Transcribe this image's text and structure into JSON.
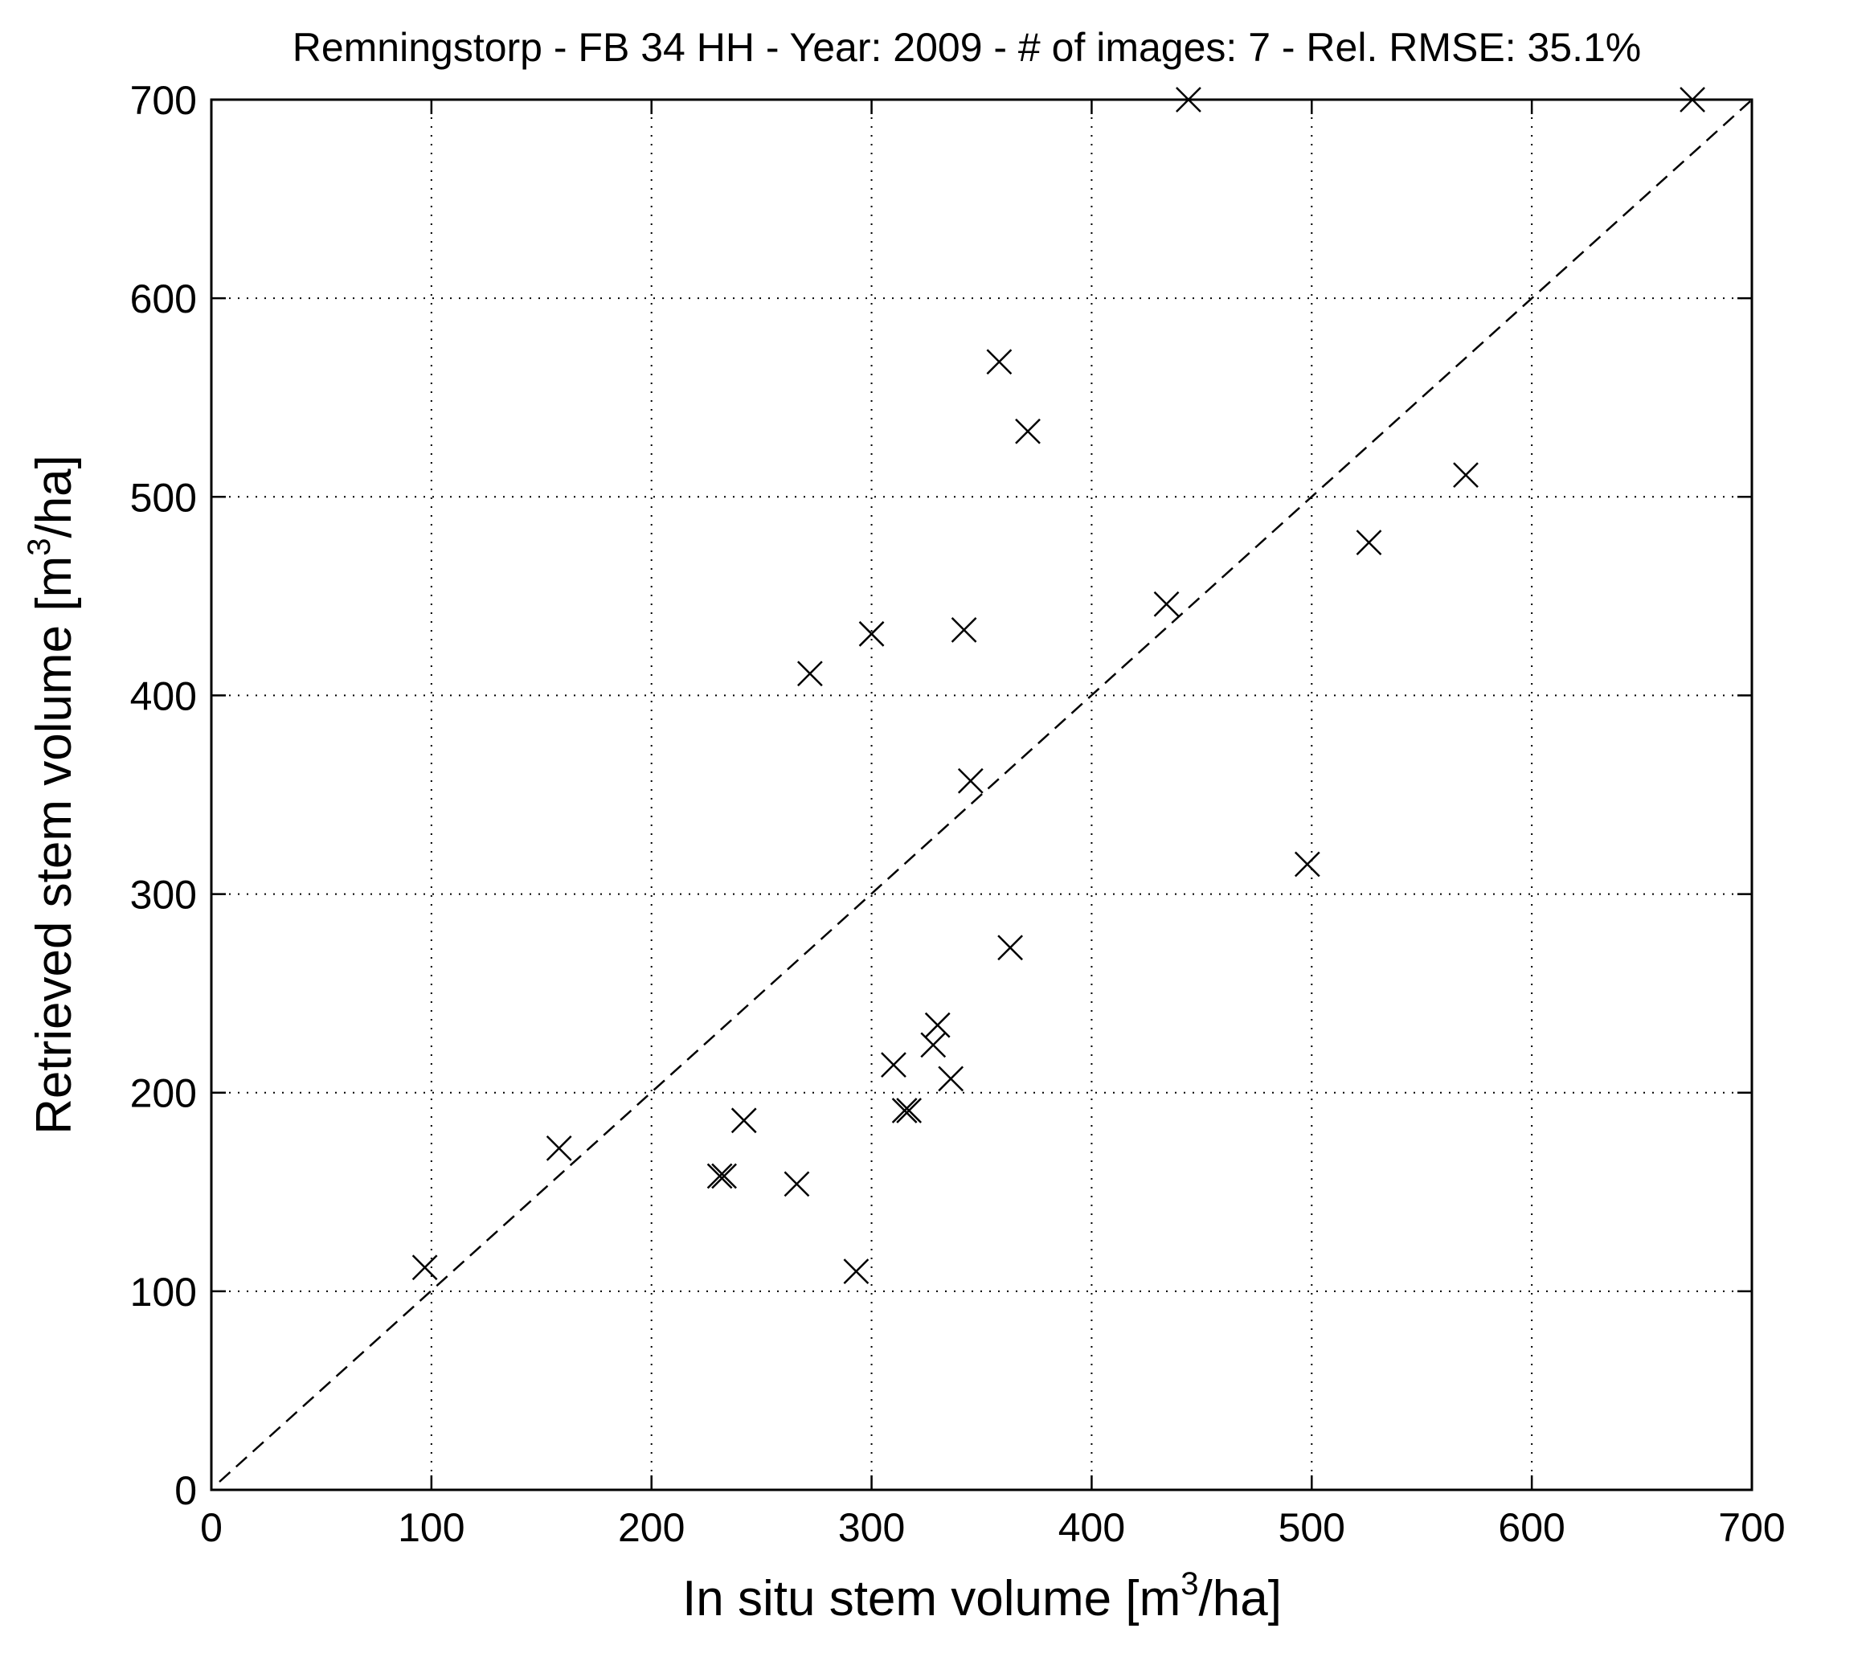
{
  "chart_data": {
    "type": "scatter",
    "title": "Remningstorp - FB 34 HH - Year: 2009 - # of images: 7 - Rel. RMSE: 35.1%",
    "xlabel": {
      "prefix": "In situ stem volume   [m",
      "sup": "3",
      "suffix": "/ha]"
    },
    "ylabel": {
      "prefix": "Retrieved stem volume   [m",
      "sup": "3",
      "suffix": "/ha]"
    },
    "xlim": [
      0,
      700
    ],
    "ylim": [
      0,
      700
    ],
    "xticks": [
      "0",
      "100",
      "200",
      "300",
      "400",
      "500",
      "600",
      "700"
    ],
    "yticks": [
      "0",
      "100",
      "200",
      "300",
      "400",
      "500",
      "600",
      "700"
    ],
    "grid": true,
    "reference_line": {
      "x": [
        0,
        700
      ],
      "y": [
        0,
        700
      ],
      "style": "dashed"
    },
    "marker": "x",
    "series": [
      {
        "points": [
          {
            "x": 97,
            "y": 112
          },
          {
            "x": 158,
            "y": 172
          },
          {
            "x": 231,
            "y": 158
          },
          {
            "x": 233,
            "y": 158
          },
          {
            "x": 242,
            "y": 186
          },
          {
            "x": 266,
            "y": 154
          },
          {
            "x": 272,
            "y": 411
          },
          {
            "x": 293,
            "y": 110
          },
          {
            "x": 300,
            "y": 431
          },
          {
            "x": 310,
            "y": 214
          },
          {
            "x": 315,
            "y": 191
          },
          {
            "x": 317,
            "y": 191
          },
          {
            "x": 328,
            "y": 224
          },
          {
            "x": 330,
            "y": 234
          },
          {
            "x": 336,
            "y": 207
          },
          {
            "x": 342,
            "y": 433
          },
          {
            "x": 345,
            "y": 357
          },
          {
            "x": 358,
            "y": 568
          },
          {
            "x": 363,
            "y": 273
          },
          {
            "x": 371,
            "y": 533
          },
          {
            "x": 434,
            "y": 446
          },
          {
            "x": 444,
            "y": 700
          },
          {
            "x": 498,
            "y": 315
          },
          {
            "x": 526,
            "y": 477
          },
          {
            "x": 570,
            "y": 511
          },
          {
            "x": 673,
            "y": 700
          }
        ]
      }
    ]
  }
}
